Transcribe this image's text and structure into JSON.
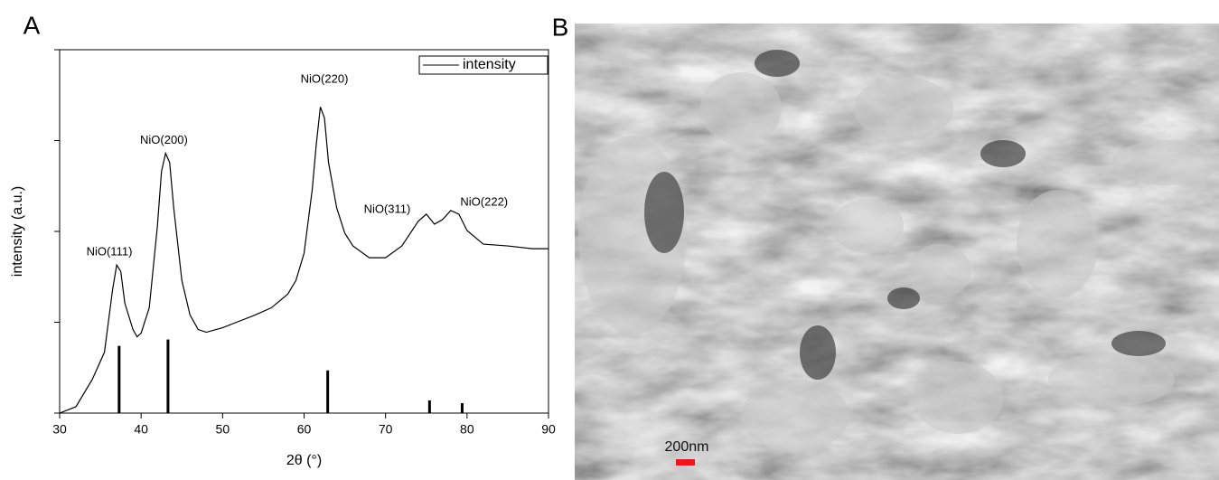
{
  "chart_data": {
    "type": "line",
    "xlabel": "2θ (°)",
    "ylabel": "intensity (a.u.)",
    "xlim": [
      30,
      90
    ],
    "xticks": [
      30,
      40,
      50,
      60,
      70,
      80,
      90
    ],
    "ylim": [
      0,
      4
    ],
    "yticks": [
      0,
      1,
      2,
      3,
      4
    ],
    "legend": "upper right",
    "series": [
      {
        "name": "intensity",
        "color": "#000000",
        "x": [
          30,
          32,
          34,
          35.5,
          36.5,
          37,
          37.5,
          38,
          39,
          39.5,
          40,
          41,
          42,
          42.5,
          43,
          43.5,
          44,
          45,
          46,
          47,
          48,
          50,
          52,
          54,
          56,
          58,
          59,
          60,
          61,
          61.5,
          62,
          62.5,
          63,
          64,
          65,
          66,
          68,
          70,
          72,
          74,
          75,
          76,
          77,
          78,
          79,
          80,
          82,
          85,
          88,
          90
        ],
        "values": [
          0,
          0.07,
          0.37,
          0.67,
          1.36,
          1.63,
          1.56,
          1.21,
          0.92,
          0.84,
          0.88,
          1.16,
          2.06,
          2.66,
          2.86,
          2.76,
          2.26,
          1.46,
          1.08,
          0.92,
          0.89,
          0.94,
          1.01,
          1.08,
          1.16,
          1.31,
          1.46,
          1.76,
          2.46,
          2.96,
          3.37,
          3.25,
          2.76,
          2.26,
          1.98,
          1.84,
          1.71,
          1.71,
          1.84,
          2.11,
          2.19,
          2.08,
          2.13,
          2.23,
          2.19,
          2.01,
          1.86,
          1.84,
          1.81,
          1.81
        ]
      }
    ],
    "reference_peaks": {
      "color": "#000000",
      "x": [
        37.3,
        43.3,
        62.9,
        75.4,
        79.4
      ],
      "values": [
        0.74,
        0.81,
        0.47,
        0.14,
        0.11
      ]
    },
    "annotations": [
      {
        "text": "NiO(111)",
        "x": 36.1,
        "y": 1.77
      },
      {
        "text": "NiO(200)",
        "x": 42.8,
        "y": 3.0
      },
      {
        "text": "NiO(220)",
        "x": 62.5,
        "y": 3.67
      },
      {
        "text": "NiO(311)",
        "x": 70.2,
        "y": 2.24
      },
      {
        "text": "NiO(222)",
        "x": 82.1,
        "y": 2.32
      }
    ]
  },
  "panels": {
    "a_label": "A",
    "b_label": "B"
  },
  "sem_image": {
    "scale_bar_label": "200nm"
  }
}
